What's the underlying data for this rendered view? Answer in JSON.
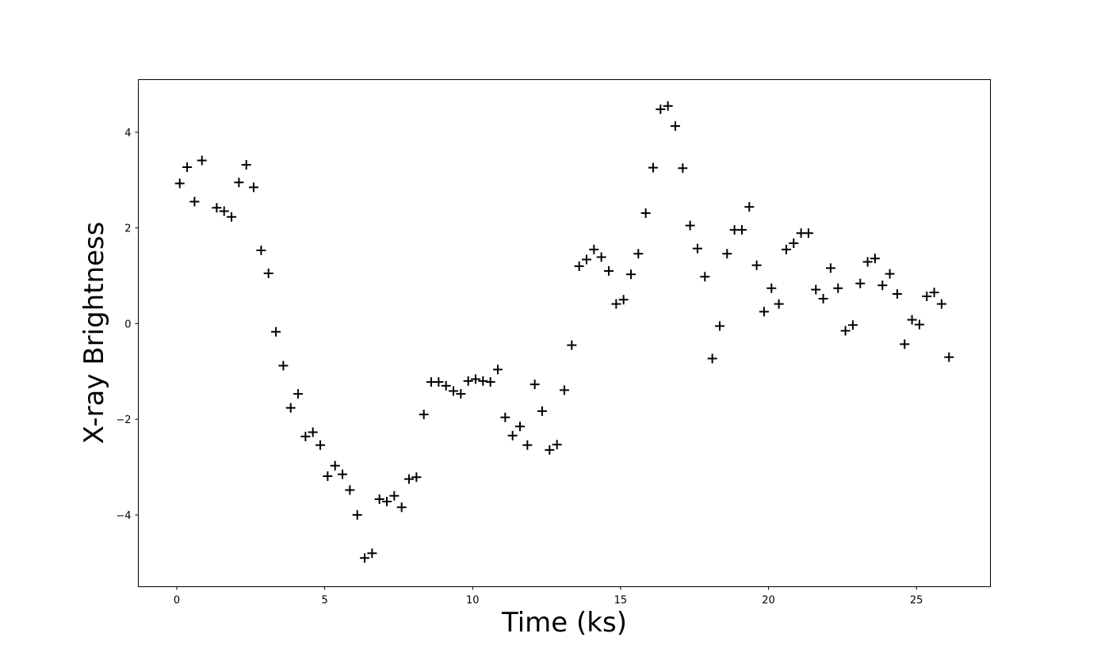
{
  "chart_data": {
    "type": "scatter",
    "title": "",
    "xlabel": "Time (ks)",
    "ylabel": "X-ray Brightness",
    "xlim": [
      -1.3,
      27.5
    ],
    "ylim": [
      -5.5,
      5.1
    ],
    "xticks": [
      0,
      5,
      10,
      15,
      20,
      25
    ],
    "yticks": [
      -4,
      -2,
      0,
      2,
      4
    ],
    "xtick_labels": [
      "0",
      "5",
      "10",
      "15",
      "20",
      "25"
    ],
    "ytick_labels": [
      "−4",
      "−2",
      "0",
      "2",
      "4"
    ],
    "grid": false,
    "marker": "+",
    "marker_color": "#000000",
    "series": [
      {
        "x": [
          0.1,
          0.35,
          0.6,
          0.85,
          1.35,
          1.6,
          1.85,
          2.1,
          2.35,
          2.6,
          2.85,
          3.1,
          3.35,
          3.6,
          3.85,
          4.1,
          4.35,
          4.6,
          4.85,
          5.1,
          5.35,
          5.6,
          5.85,
          6.1,
          6.35,
          6.6,
          6.85,
          7.1,
          7.35,
          7.6,
          7.85,
          8.1,
          8.35,
          8.6,
          8.85,
          9.1,
          9.35,
          9.6,
          9.85,
          10.1,
          10.35,
          10.6,
          10.85,
          11.1,
          11.35,
          11.6,
          11.85,
          12.1,
          12.35,
          12.6,
          12.85,
          13.1,
          13.35,
          13.6,
          13.85,
          14.1,
          14.35,
          14.6,
          14.85,
          15.1,
          15.35,
          15.6,
          15.85,
          16.1,
          16.35,
          16.6,
          16.85,
          17.1,
          17.35,
          17.6,
          17.85,
          18.1,
          18.35,
          18.6,
          18.85,
          19.1,
          19.35,
          19.6,
          19.85,
          20.1,
          20.35,
          20.6,
          20.85,
          21.1,
          21.35,
          21.6,
          21.85,
          22.1,
          22.35,
          22.6,
          22.85,
          23.1,
          23.35,
          23.6,
          23.85,
          24.1,
          24.35,
          24.6,
          24.85,
          25.1,
          25.35,
          25.6,
          25.85,
          26.1
        ],
        "y": [
          2.93,
          3.27,
          2.55,
          3.41,
          2.42,
          2.35,
          2.23,
          2.95,
          3.32,
          2.85,
          1.53,
          1.05,
          -0.17,
          -0.88,
          -1.76,
          -1.47,
          -2.36,
          -2.27,
          -2.54,
          -3.19,
          -2.97,
          -3.15,
          -3.48,
          -4.0,
          -4.9,
          -4.8,
          -3.67,
          -3.72,
          -3.6,
          -3.84,
          -3.25,
          -3.21,
          -1.9,
          -1.22,
          -1.22,
          -1.3,
          -1.41,
          -1.47,
          -1.2,
          -1.16,
          -1.2,
          -1.22,
          -0.96,
          -1.96,
          -2.34,
          -2.15,
          -2.54,
          -1.27,
          -1.83,
          -2.64,
          -2.53,
          -1.39,
          -0.45,
          1.2,
          1.34,
          1.55,
          1.39,
          1.1,
          0.41,
          0.5,
          1.03,
          1.46,
          2.31,
          3.26,
          4.48,
          4.55,
          4.13,
          3.25,
          2.05,
          1.57,
          0.98,
          -0.73,
          -0.05,
          1.46,
          1.96,
          1.96,
          2.44,
          1.22,
          0.25,
          0.74,
          0.41,
          1.55,
          1.68,
          1.89,
          1.89,
          0.71,
          0.52,
          1.16,
          0.74,
          -0.15,
          -0.03,
          0.84,
          1.29,
          1.36,
          0.8,
          1.04,
          0.62,
          -0.43,
          0.08,
          -0.02,
          0.57,
          0.65,
          0.41,
          -0.7
        ]
      }
    ]
  }
}
